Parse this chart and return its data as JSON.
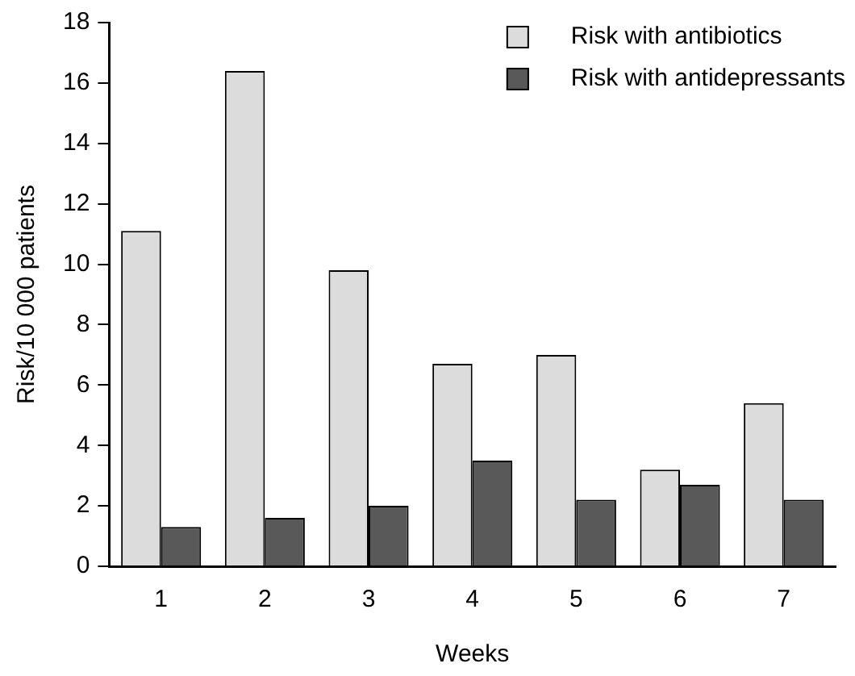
{
  "chart_data": {
    "type": "bar",
    "xlabel": "Weeks",
    "ylabel": "Risk/10 000 patients",
    "categories": [
      "1",
      "2",
      "3",
      "4",
      "5",
      "6",
      "7"
    ],
    "series": [
      {
        "name": "Risk with antibiotics",
        "color": "#dcdcdc",
        "values": [
          11.1,
          16.4,
          9.8,
          6.7,
          7.0,
          3.2,
          5.4
        ]
      },
      {
        "name": "Risk with antidepressants",
        "color": "#595959",
        "values": [
          1.3,
          1.6,
          2.0,
          3.5,
          2.2,
          2.7,
          2.2
        ]
      }
    ],
    "ylim": [
      0,
      18
    ],
    "yticks": [
      0,
      2,
      4,
      6,
      8,
      10,
      12,
      14,
      16,
      18
    ],
    "grid": false,
    "legend": "top right"
  }
}
